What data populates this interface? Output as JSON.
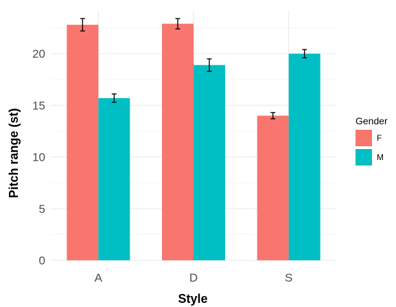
{
  "chart_data": {
    "type": "bar",
    "title": "",
    "xlabel": "Style",
    "ylabel": "Pitch range (st)",
    "categories": [
      "A",
      "D",
      "S"
    ],
    "ylim": [
      0,
      24.2
    ],
    "yticks": [
      0,
      5,
      10,
      15,
      20
    ],
    "grid": true,
    "legend": {
      "title": "Gender",
      "position": "right"
    },
    "series": [
      {
        "name": "F",
        "color": "#F8766D",
        "values": [
          22.8,
          22.9,
          14.0
        ],
        "err": [
          0.6,
          0.5,
          0.3
        ]
      },
      {
        "name": "M",
        "color": "#00BFC4",
        "values": [
          15.7,
          18.9,
          20.0
        ],
        "err": [
          0.4,
          0.6,
          0.4
        ]
      }
    ]
  }
}
